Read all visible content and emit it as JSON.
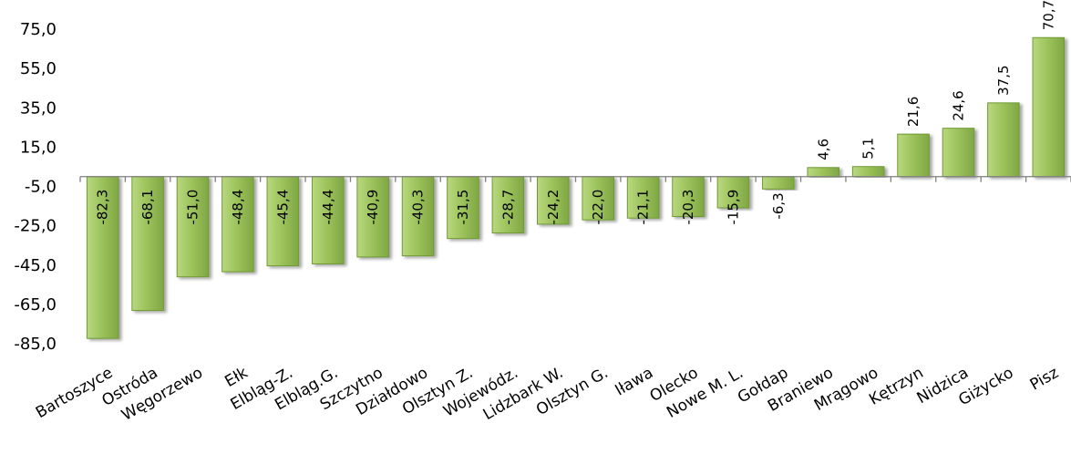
{
  "chart_data": {
    "type": "bar",
    "categories": [
      "Bartoszyce",
      "Ostróda",
      "Węgorzewo",
      "Ełk",
      "Elbląg-Z.",
      "Elbląg.G.",
      "Szczytno",
      "Działdowo",
      "Olsztyn Z.",
      "Wojewódz.",
      "Lidzbark W.",
      "Olsztyn G.",
      "Iława",
      "Olecko",
      "Nowe M. L.",
      "Gołdap",
      "Braniewo",
      "Mrągowo",
      "Kętrzyn",
      "Nidzica",
      "Giżycko",
      "Pisz"
    ],
    "values": [
      -82.3,
      -68.1,
      -51.0,
      -48.4,
      -45.4,
      -44.4,
      -40.9,
      -40.3,
      -31.5,
      -28.7,
      -24.2,
      -22.0,
      -21.1,
      -20.3,
      -15.9,
      -6.3,
      4.6,
      5.1,
      21.6,
      24.6,
      37.5,
      70.7
    ],
    "data_labels": [
      "-82,3",
      "-68,1",
      "-51,0",
      "-48,4",
      "-45,4",
      "-44,4",
      "-40,9",
      "-40,3",
      "-31,5",
      "-28,7",
      "-24,2",
      "-22,0",
      "-21,1",
      "-20,3",
      "-15,9",
      "-6,3",
      "4,6",
      "5,1",
      "21,6",
      "24,6",
      "37,5",
      "70,7"
    ],
    "y_ticks": [
      75,
      55,
      35,
      15,
      -5,
      -25,
      -45,
      -65,
      -85
    ],
    "y_tick_labels": [
      "75,0",
      "55,0",
      "35,0",
      "15,0",
      "-5,0",
      "-25,0",
      "-45,0",
      "-65,0",
      "-85,0"
    ],
    "ylim": [
      -85,
      75
    ],
    "baseline": 0,
    "grid": false,
    "legend": "none",
    "bar_color": "#9bc15a",
    "bar_color_dark": "#6f9a34",
    "title": "",
    "xlabel": "",
    "ylabel": ""
  }
}
